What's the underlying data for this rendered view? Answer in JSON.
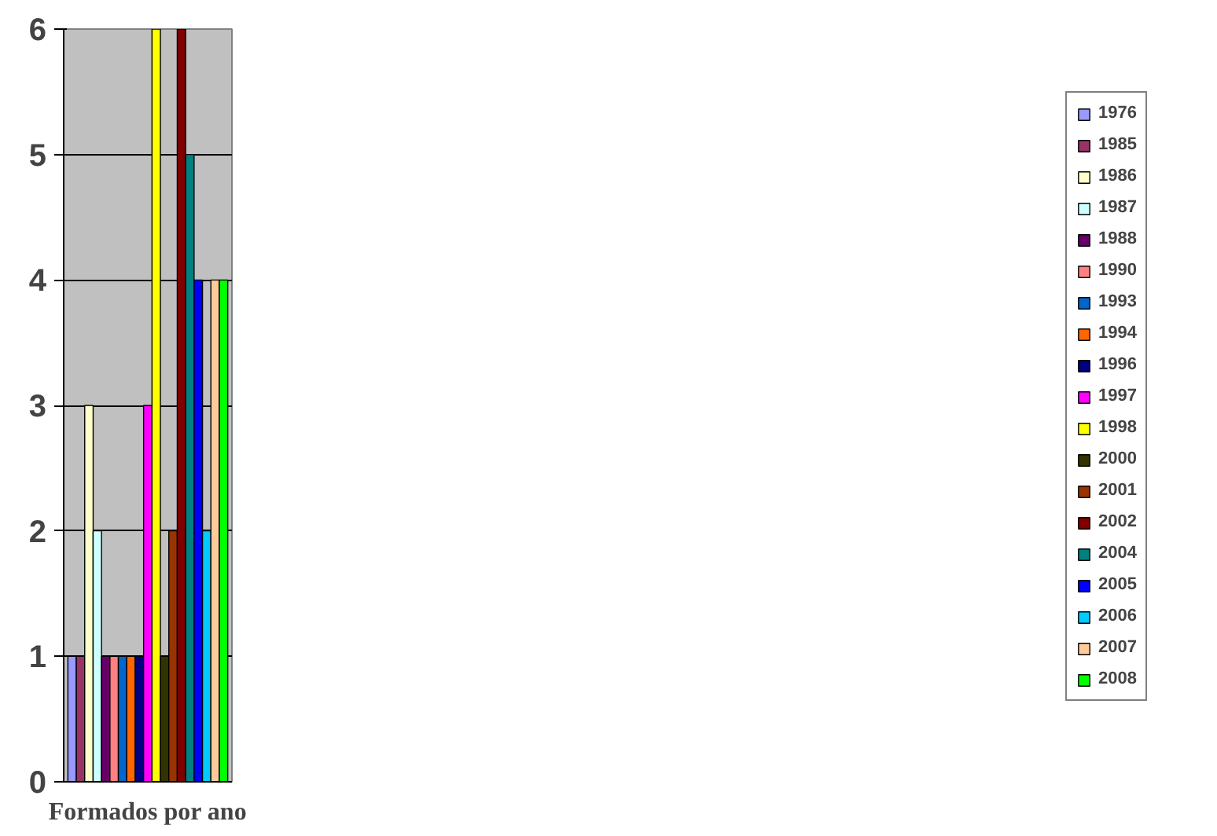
{
  "chart_data": {
    "type": "bar",
    "xlabel": "Formados por ano",
    "categories": [
      null
    ],
    "series": [
      {
        "name": "1976",
        "color": "#9999ff",
        "values": [
          1
        ]
      },
      {
        "name": "1985",
        "color": "#993366",
        "values": [
          1
        ]
      },
      {
        "name": "1986",
        "color": "#ffffcc",
        "values": [
          3
        ]
      },
      {
        "name": "1987",
        "color": "#ccffff",
        "values": [
          2
        ]
      },
      {
        "name": "1988",
        "color": "#660066",
        "values": [
          1
        ]
      },
      {
        "name": "1990",
        "color": "#ff8080",
        "values": [
          1
        ]
      },
      {
        "name": "1993",
        "color": "#0066cc",
        "values": [
          1
        ]
      },
      {
        "name": "1994",
        "color": "#ff6600",
        "values": [
          1
        ]
      },
      {
        "name": "1996",
        "color": "#000080",
        "values": [
          1
        ]
      },
      {
        "name": "1997",
        "color": "#ff00ff",
        "values": [
          3
        ]
      },
      {
        "name": "1998",
        "color": "#ffff00",
        "values": [
          6
        ]
      },
      {
        "name": "2000",
        "color": "#333300",
        "values": [
          1
        ]
      },
      {
        "name": "2001",
        "color": "#993300",
        "values": [
          2
        ]
      },
      {
        "name": "2002",
        "color": "#800000",
        "values": [
          6
        ]
      },
      {
        "name": "2004",
        "color": "#008080",
        "values": [
          5
        ]
      },
      {
        "name": "2005",
        "color": "#0000ff",
        "values": [
          4
        ]
      },
      {
        "name": "2006",
        "color": "#00ccff",
        "values": [
          2
        ]
      },
      {
        "name": "2007",
        "color": "#ffcc99",
        "values": [
          4
        ]
      },
      {
        "name": "2008",
        "color": "#00ff00",
        "values": [
          4
        ]
      }
    ],
    "ylim": [
      0,
      6
    ],
    "yticks": [
      0,
      1,
      2,
      3,
      4,
      5,
      6
    ],
    "grid": "y",
    "legend": "right"
  }
}
